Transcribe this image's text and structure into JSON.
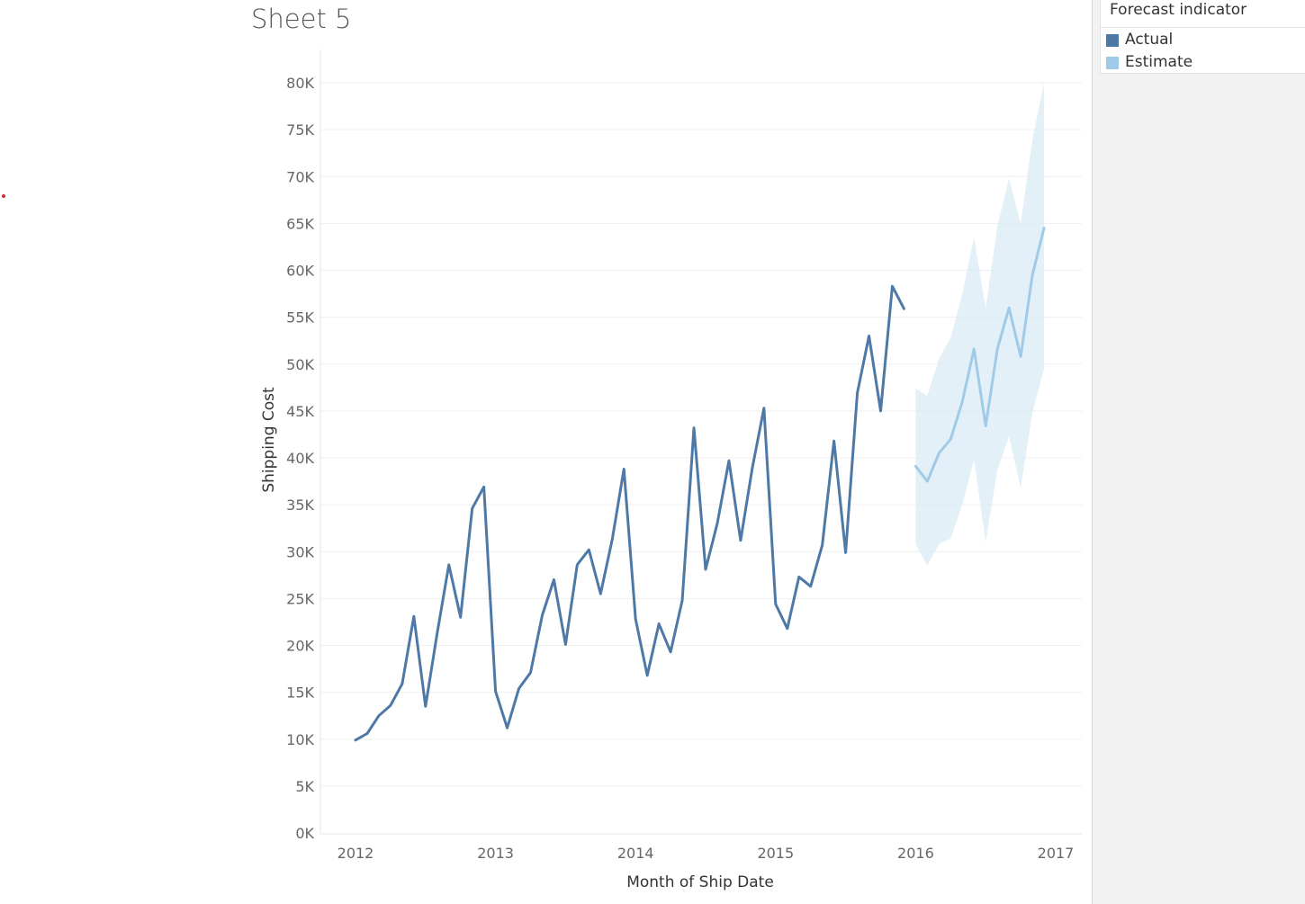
{
  "sheet": {
    "title": "Sheet 5"
  },
  "legend": {
    "title": "Forecast indicator",
    "items": [
      {
        "label": "Actual",
        "color": "#4e79a7"
      },
      {
        "label": "Estimate",
        "color": "#a0cbe8"
      }
    ]
  },
  "chart_data": {
    "type": "line",
    "xlabel": "Month of Ship Date",
    "ylabel": "Shipping Cost",
    "xlim": [
      2012,
      2017
    ],
    "ylim": [
      0,
      80000
    ],
    "x_ticks": [
      "2012",
      "2013",
      "2014",
      "2015",
      "2016",
      "2017"
    ],
    "y_ticks": [
      "0K",
      "5K",
      "10K",
      "15K",
      "20K",
      "25K",
      "30K",
      "35K",
      "40K",
      "45K",
      "50K",
      "55K",
      "60K",
      "65K",
      "70K",
      "75K",
      "80K"
    ],
    "grid": true,
    "legend_position": "top-right",
    "series": [
      {
        "name": "Actual",
        "color": "#4e79a7",
        "x": [
          "2012-01",
          "2012-02",
          "2012-03",
          "2012-04",
          "2012-05",
          "2012-06",
          "2012-07",
          "2012-08",
          "2012-09",
          "2012-10",
          "2012-11",
          "2012-12",
          "2013-01",
          "2013-02",
          "2013-03",
          "2013-04",
          "2013-05",
          "2013-06",
          "2013-07",
          "2013-08",
          "2013-09",
          "2013-10",
          "2013-11",
          "2013-12",
          "2014-01",
          "2014-02",
          "2014-03",
          "2014-04",
          "2014-05",
          "2014-06",
          "2014-07",
          "2014-08",
          "2014-09",
          "2014-10",
          "2014-11",
          "2014-12",
          "2015-01",
          "2015-02",
          "2015-03",
          "2015-04",
          "2015-05",
          "2015-06",
          "2015-07",
          "2015-08",
          "2015-09",
          "2015-10",
          "2015-11",
          "2015-12"
        ],
        "values": [
          9900,
          10600,
          12500,
          13600,
          15900,
          23100,
          13500,
          21300,
          28600,
          23000,
          34600,
          36900,
          15100,
          11200,
          15400,
          17100,
          23200,
          27000,
          20100,
          28600,
          30200,
          25500,
          31300,
          38800,
          22800,
          16800,
          22300,
          19300,
          24800,
          43200,
          28100,
          33000,
          39700,
          31200,
          38900,
          45300,
          24400,
          21800,
          27300,
          26300,
          30700,
          41800,
          29900,
          46900,
          53000,
          45000,
          58300,
          55900
        ]
      },
      {
        "name": "Estimate",
        "color": "#a0cbe8",
        "x": [
          "2016-01",
          "2016-02",
          "2016-03",
          "2016-04",
          "2016-05",
          "2016-06",
          "2016-07",
          "2016-08",
          "2016-09",
          "2016-10",
          "2016-11",
          "2016-12"
        ],
        "values": [
          39100,
          37500,
          40500,
          42000,
          46000,
          51600,
          43400,
          51600,
          56000,
          50800,
          59500,
          64500
        ],
        "lower": [
          30800,
          28500,
          30800,
          31400,
          35000,
          39800,
          31000,
          38700,
          42300,
          36800,
          44800,
          49500
        ],
        "upper": [
          47400,
          46600,
          50600,
          52800,
          57500,
          63500,
          56000,
          64700,
          69800,
          65000,
          73900,
          80000
        ]
      }
    ]
  }
}
